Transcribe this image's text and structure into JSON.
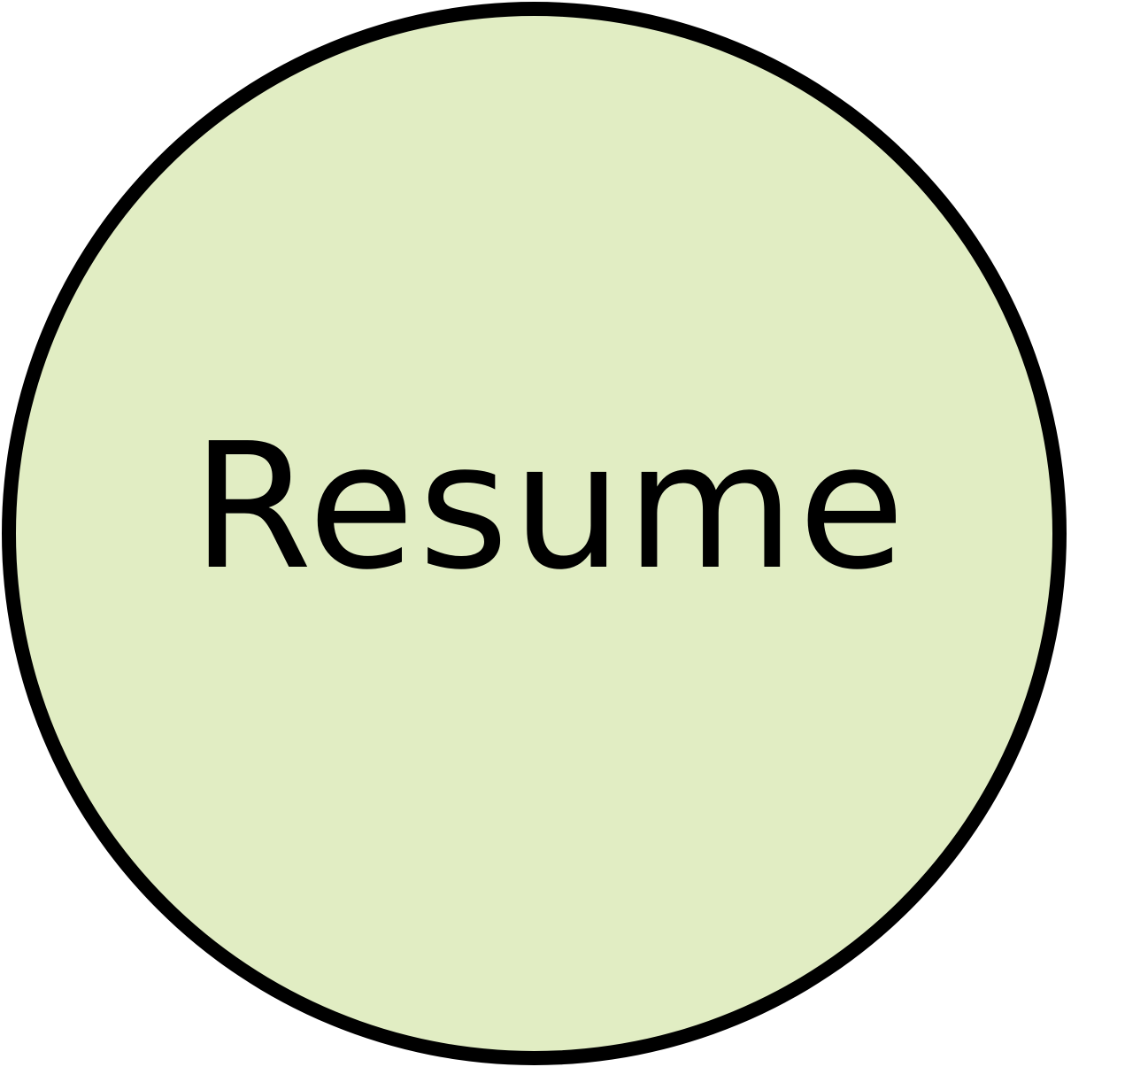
{
  "resume_button": {
    "label": "Resume",
    "fill_color": "#e1edc3",
    "border_color": "#000000",
    "text_color": "#000000"
  }
}
